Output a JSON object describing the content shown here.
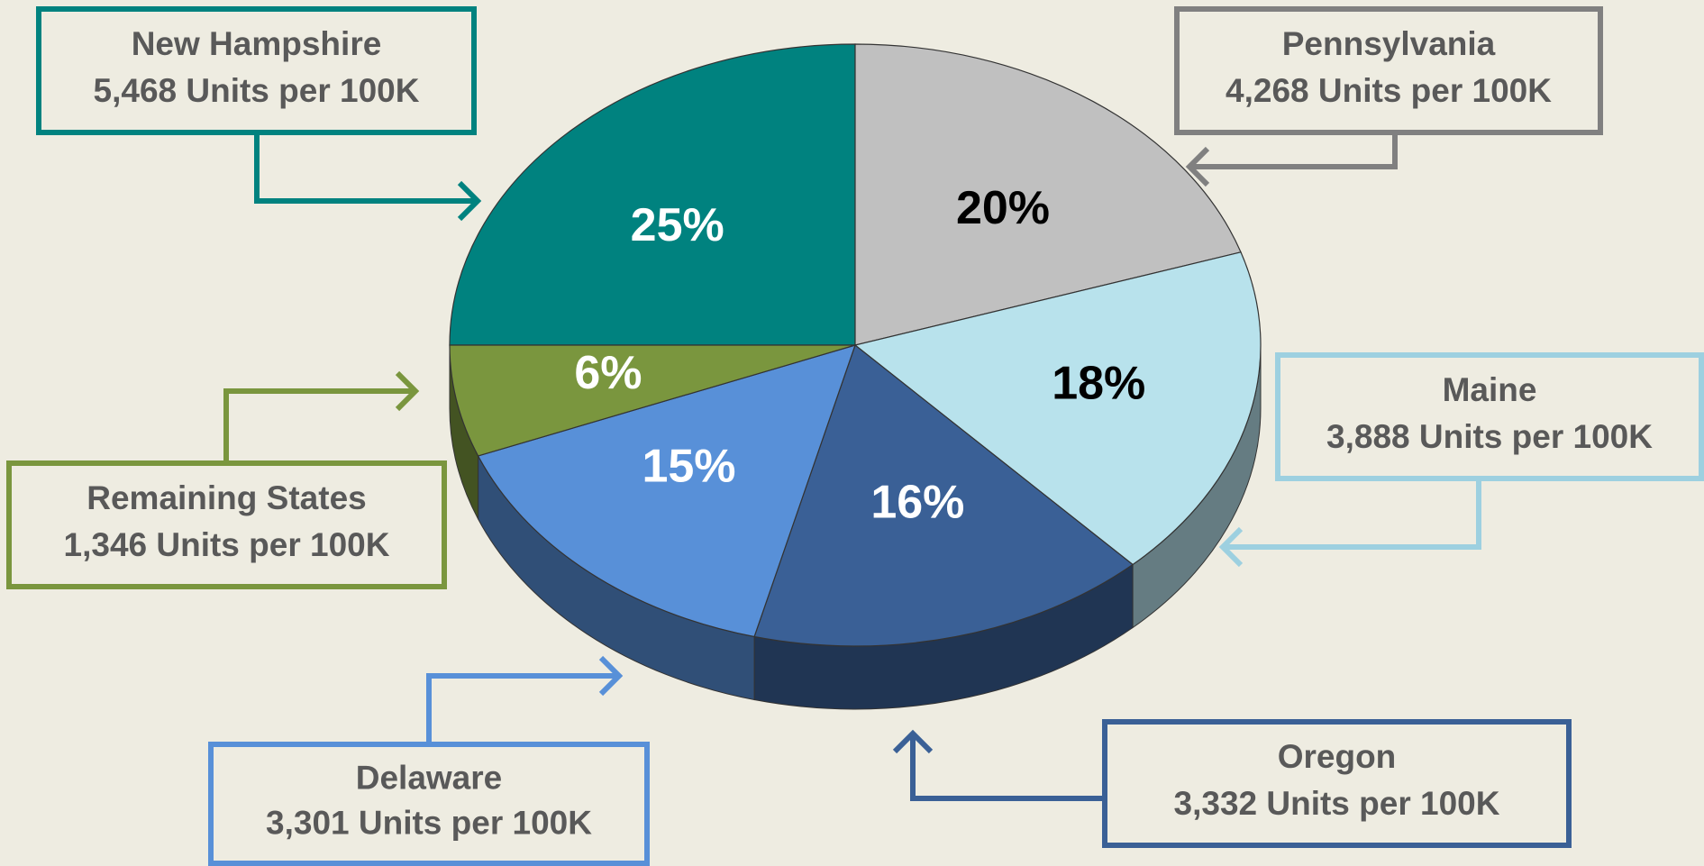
{
  "chart_data": {
    "type": "pie",
    "categories": [
      "New Hampshire",
      "Pennsylvania",
      "Maine",
      "Oregon",
      "Delaware",
      "Remaining States"
    ],
    "values": [
      25,
      20,
      18,
      16,
      15,
      6
    ],
    "value_labels": [
      "25%",
      "20%",
      "18%",
      "16%",
      "15%",
      "6%"
    ],
    "notes": [
      "5,468 Units per 100K",
      "4,268 Units per 100K",
      "3,888 Units per 100K",
      "3,332 Units per 100K",
      "3,301 Units per 100K",
      "1,346 Units per 100K"
    ],
    "colors": [
      "#00827f",
      "#c0c0c0",
      "#b8e2ec",
      "#3a6096",
      "#5890d8",
      "#7a963e"
    ],
    "box_colors": [
      "#00827f",
      "#808080",
      "#9dd0e0",
      "#3a6096",
      "#5890d8",
      "#7a963e"
    ]
  }
}
